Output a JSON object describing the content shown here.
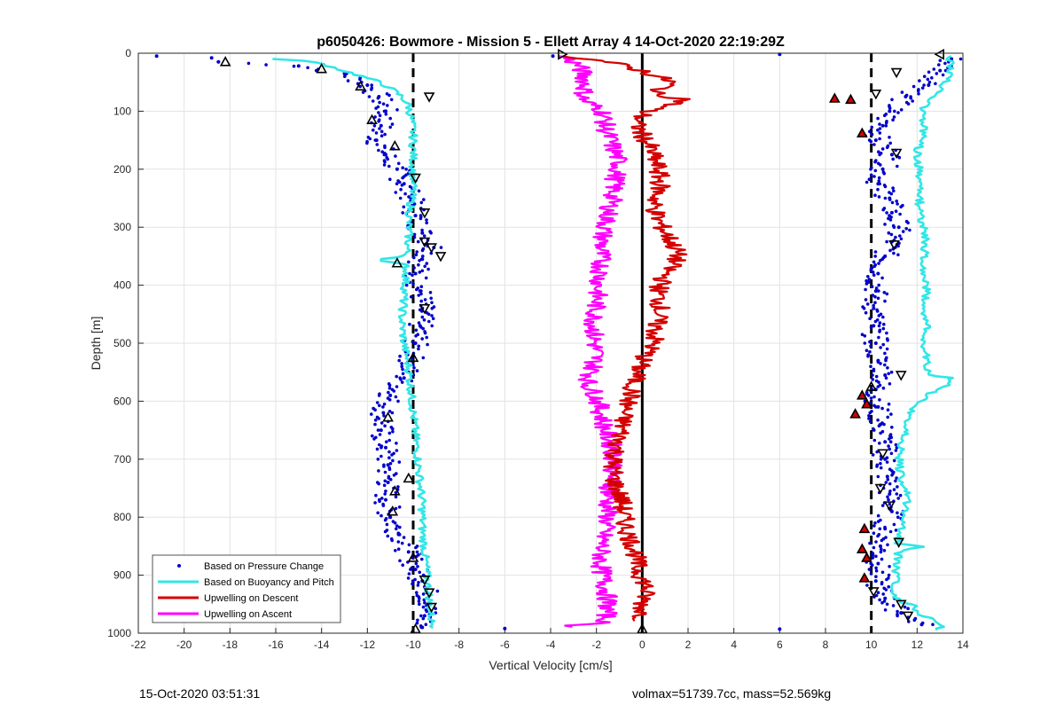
{
  "chart_data": {
    "type": "scatter",
    "title": "p6050426: Bowmore - Mission 5 - Ellett Array 4 14-Oct-2020 22:19:29Z",
    "xlabel": "Vertical Velocity [cm/s]",
    "ylabel": "Depth [m]",
    "xlim": [
      -22,
      14
    ],
    "ylim": [
      0,
      1000
    ],
    "y_reversed": true,
    "grid": true,
    "x_ticks": [
      "-22",
      "-20",
      "-18",
      "-16",
      "-14",
      "-12",
      "-10",
      "-8",
      "-6",
      "-4",
      "-2",
      "0",
      "2",
      "4",
      "6",
      "8",
      "10",
      "12",
      "14"
    ],
    "y_ticks": [
      "0",
      "100",
      "200",
      "300",
      "400",
      "500",
      "600",
      "700",
      "800",
      "900",
      "1000"
    ],
    "reference_lines": [
      {
        "x": -10,
        "style": "dashed",
        "color": "#000000"
      },
      {
        "x": 10,
        "style": "dashed",
        "color": "#000000"
      },
      {
        "x": 0,
        "style": "solid",
        "color": "#000000"
      }
    ],
    "legend_position": "bottom-left",
    "series": [
      {
        "name": "Based on Pressure Change",
        "kind": "points",
        "color": "#0000cc",
        "descent": [
          [
            -18.5,
            15
          ],
          [
            -15,
            22
          ],
          [
            -13,
            35
          ],
          [
            -12,
            55
          ],
          [
            -11.5,
            75
          ],
          [
            -11.2,
            100
          ],
          [
            -11.4,
            125
          ],
          [
            -11.6,
            150
          ],
          [
            -11.2,
            175
          ],
          [
            -10.7,
            200
          ],
          [
            -10.4,
            225
          ],
          [
            -10.1,
            250
          ],
          [
            -9.9,
            280
          ],
          [
            -9.6,
            310
          ],
          [
            -9.1,
            335
          ],
          [
            -9.6,
            355
          ],
          [
            -9.9,
            380
          ],
          [
            -9.7,
            410
          ],
          [
            -9.6,
            440
          ],
          [
            -9.7,
            470
          ],
          [
            -9.9,
            500
          ],
          [
            -10.1,
            530
          ],
          [
            -10.4,
            560
          ],
          [
            -11,
            590
          ],
          [
            -11.3,
            620
          ],
          [
            -11.4,
            650
          ],
          [
            -11.2,
            680
          ],
          [
            -11.1,
            710
          ],
          [
            -11.1,
            740
          ],
          [
            -11.2,
            770
          ],
          [
            -11,
            800
          ],
          [
            -10.6,
            830
          ],
          [
            -10.2,
            860
          ],
          [
            -9.9,
            890
          ],
          [
            -9.6,
            910
          ],
          [
            -9.4,
            930
          ],
          [
            -9.3,
            950
          ],
          [
            -9.5,
            970
          ],
          [
            -9.6,
            990
          ]
        ],
        "ascent": [
          [
            13.5,
            10
          ],
          [
            13,
            30
          ],
          [
            12.5,
            55
          ],
          [
            11.5,
            75
          ],
          [
            10.8,
            100
          ],
          [
            10.5,
            125
          ],
          [
            10.2,
            150
          ],
          [
            10.9,
            175
          ],
          [
            10.5,
            200
          ],
          [
            10.3,
            225
          ],
          [
            10.8,
            250
          ],
          [
            10.9,
            275
          ],
          [
            11.2,
            300
          ],
          [
            10.9,
            325
          ],
          [
            10.6,
            350
          ],
          [
            10.3,
            380
          ],
          [
            10.2,
            410
          ],
          [
            10.1,
            440
          ],
          [
            10.1,
            470
          ],
          [
            10.2,
            500
          ],
          [
            10.3,
            530
          ],
          [
            10.6,
            555
          ],
          [
            10.2,
            580
          ],
          [
            10.3,
            610
          ],
          [
            10.4,
            640
          ],
          [
            10.6,
            670
          ],
          [
            10.6,
            700
          ],
          [
            10.7,
            730
          ],
          [
            10.8,
            760
          ],
          [
            10.9,
            790
          ],
          [
            10.6,
            820
          ],
          [
            10.4,
            850
          ],
          [
            10.3,
            880
          ],
          [
            10.2,
            910
          ],
          [
            10.6,
            940
          ],
          [
            11.3,
            965
          ],
          [
            12.2,
            985
          ]
        ],
        "outliers": [
          [
            -21.2,
            5
          ],
          [
            -18.8,
            8
          ],
          [
            -3.9,
            5
          ],
          [
            6,
            2
          ],
          [
            -6,
            992
          ],
          [
            6,
            993
          ]
        ]
      },
      {
        "name": "Based on Buoyancy and Pitch",
        "kind": "line",
        "color": "#33e6e6",
        "descent": [
          [
            -16,
            10
          ],
          [
            -15,
            12
          ],
          [
            -14,
            18
          ],
          [
            -13.2,
            28
          ],
          [
            -12.4,
            38
          ],
          [
            -11.6,
            48
          ],
          [
            -11,
            60
          ],
          [
            -10.5,
            75
          ],
          [
            -10.2,
            90
          ],
          [
            -10.1,
            110
          ],
          [
            -10,
            140
          ],
          [
            -10,
            170
          ],
          [
            -10,
            200
          ],
          [
            -10,
            230
          ],
          [
            -10.1,
            260
          ],
          [
            -10.2,
            290
          ],
          [
            -10.2,
            320
          ],
          [
            -10.3,
            350
          ],
          [
            -11.6,
            357
          ],
          [
            -10.3,
            365
          ],
          [
            -10.3,
            380
          ],
          [
            -10.4,
            420
          ],
          [
            -10.5,
            460
          ],
          [
            -10.4,
            500
          ],
          [
            -10.2,
            540
          ],
          [
            -10.1,
            580
          ],
          [
            -10,
            620
          ],
          [
            -9.9,
            660
          ],
          [
            -9.8,
            700
          ],
          [
            -9.7,
            740
          ],
          [
            -9.6,
            780
          ],
          [
            -9.6,
            820
          ],
          [
            -9.5,
            860
          ],
          [
            -9.4,
            900
          ],
          [
            -9.3,
            940
          ],
          [
            -9.2,
            980
          ],
          [
            -9,
            993
          ],
          [
            12.9,
            993
          ]
        ],
        "ascent": [
          [
            13,
            995
          ],
          [
            13,
            985
          ],
          [
            12.8,
            975
          ],
          [
            12,
            968
          ],
          [
            11.9,
            950
          ],
          [
            11.1,
            945
          ],
          [
            11,
            920
          ],
          [
            11.1,
            890
          ],
          [
            11.2,
            860
          ],
          [
            12.3,
            850
          ],
          [
            11.2,
            845
          ],
          [
            11.3,
            820
          ],
          [
            11.5,
            790
          ],
          [
            11.6,
            770
          ],
          [
            11.4,
            740
          ],
          [
            11.2,
            710
          ],
          [
            11.3,
            680
          ],
          [
            11.5,
            650
          ],
          [
            11.7,
            620
          ],
          [
            12.1,
            600
          ],
          [
            12.6,
            585
          ],
          [
            13.5,
            570
          ],
          [
            13.5,
            560
          ],
          [
            12.5,
            555
          ],
          [
            12.4,
            530
          ],
          [
            12.3,
            500
          ],
          [
            12.4,
            470
          ],
          [
            12.3,
            440
          ],
          [
            12.4,
            410
          ],
          [
            12.3,
            380
          ],
          [
            12.3,
            350
          ],
          [
            12.4,
            320
          ],
          [
            12.2,
            290
          ],
          [
            12.1,
            260
          ],
          [
            12.2,
            230
          ],
          [
            12.1,
            200
          ],
          [
            12,
            170
          ],
          [
            12.2,
            150
          ],
          [
            12.3,
            120
          ],
          [
            12.2,
            100
          ],
          [
            12.5,
            80
          ],
          [
            13.1,
            60
          ],
          [
            13.4,
            40
          ],
          [
            13.5,
            20
          ],
          [
            13.4,
            5
          ]
        ]
      },
      {
        "name": "Upwelling on Descent",
        "kind": "line",
        "color": "#d40000",
        "points": [
          [
            -3.2,
            5
          ],
          [
            -1.5,
            15
          ],
          [
            0,
            30
          ],
          [
            1.3,
            50
          ],
          [
            0.5,
            70
          ],
          [
            2,
            80
          ],
          [
            0.2,
            100
          ],
          [
            -0.3,
            120
          ],
          [
            0,
            140
          ],
          [
            0.3,
            160
          ],
          [
            0.5,
            180
          ],
          [
            0.7,
            200
          ],
          [
            0.8,
            230
          ],
          [
            0.5,
            260
          ],
          [
            0.7,
            290
          ],
          [
            1.2,
            320
          ],
          [
            1.5,
            340
          ],
          [
            1.5,
            355
          ],
          [
            1,
            380
          ],
          [
            0.7,
            410
          ],
          [
            0.8,
            440
          ],
          [
            0.6,
            470
          ],
          [
            0.5,
            500
          ],
          [
            0,
            530
          ],
          [
            -0.3,
            560
          ],
          [
            -0.5,
            590
          ],
          [
            -0.8,
            620
          ],
          [
            -0.9,
            650
          ],
          [
            -1.1,
            680
          ],
          [
            -1.3,
            710
          ],
          [
            -1.2,
            740
          ],
          [
            -0.9,
            770
          ],
          [
            -0.8,
            800
          ],
          [
            -0.6,
            830
          ],
          [
            -0.3,
            860
          ],
          [
            -0.2,
            890
          ],
          [
            0.2,
            920
          ],
          [
            0,
            950
          ],
          [
            0,
            980
          ]
        ]
      },
      {
        "name": "Upwelling on Ascent",
        "kind": "line",
        "color": "#ff00ff",
        "points": [
          [
            -3.5,
            5
          ],
          [
            -2.8,
            20
          ],
          [
            -2.5,
            40
          ],
          [
            -2.5,
            60
          ],
          [
            -2.6,
            80
          ],
          [
            -1.7,
            100
          ],
          [
            -1.6,
            130
          ],
          [
            -1.3,
            160
          ],
          [
            -1,
            190
          ],
          [
            -1.2,
            220
          ],
          [
            -1.3,
            250
          ],
          [
            -1.5,
            280
          ],
          [
            -1.7,
            310
          ],
          [
            -1.8,
            340
          ],
          [
            -1.8,
            370
          ],
          [
            -1.9,
            400
          ],
          [
            -2,
            430
          ],
          [
            -2.1,
            460
          ],
          [
            -2.1,
            490
          ],
          [
            -2,
            520
          ],
          [
            -2.2,
            550
          ],
          [
            -2.4,
            570
          ],
          [
            -2,
            590
          ],
          [
            -1.8,
            620
          ],
          [
            -1.6,
            650
          ],
          [
            -1.3,
            680
          ],
          [
            -1.2,
            710
          ],
          [
            -1.4,
            740
          ],
          [
            -1.5,
            770
          ],
          [
            -1.5,
            800
          ],
          [
            -1.7,
            830
          ],
          [
            -1.8,
            860
          ],
          [
            -1.8,
            890
          ],
          [
            -1.6,
            920
          ],
          [
            -1.5,
            950
          ],
          [
            -1.6,
            980
          ],
          [
            -3.5,
            990
          ]
        ]
      }
    ],
    "triangle_markers": [
      {
        "x": -18.2,
        "y": 15,
        "dir": "up"
      },
      {
        "x": -14,
        "y": 27,
        "dir": "up"
      },
      {
        "x": -12.3,
        "y": 57,
        "dir": "up"
      },
      {
        "x": -9.3,
        "y": 75,
        "dir": "down"
      },
      {
        "x": -11.8,
        "y": 115,
        "dir": "up"
      },
      {
        "x": -10.8,
        "y": 160,
        "dir": "up"
      },
      {
        "x": -9.9,
        "y": 215,
        "dir": "down"
      },
      {
        "x": -9.5,
        "y": 275,
        "dir": "down"
      },
      {
        "x": -9.5,
        "y": 325,
        "dir": "down"
      },
      {
        "x": -9.2,
        "y": 335,
        "dir": "down"
      },
      {
        "x": -8.8,
        "y": 350,
        "dir": "down"
      },
      {
        "x": -10.7,
        "y": 362,
        "dir": "up"
      },
      {
        "x": -9.5,
        "y": 440,
        "dir": "down"
      },
      {
        "x": -10,
        "y": 525,
        "dir": "up"
      },
      {
        "x": -11.1,
        "y": 628,
        "dir": "up"
      },
      {
        "x": -10.2,
        "y": 733,
        "dir": "up"
      },
      {
        "x": -10.8,
        "y": 755,
        "dir": "up"
      },
      {
        "x": -10.9,
        "y": 790,
        "dir": "up"
      },
      {
        "x": -10,
        "y": 870,
        "dir": "up"
      },
      {
        "x": -9.5,
        "y": 908,
        "dir": "down"
      },
      {
        "x": -9.3,
        "y": 930,
        "dir": "down"
      },
      {
        "x": -9.2,
        "y": 955,
        "dir": "down"
      },
      {
        "x": -9.9,
        "y": 993,
        "dir": "up"
      },
      {
        "x": -3.5,
        "y": 2,
        "dir": "right"
      },
      {
        "x": 0,
        "y": 993,
        "dir": "up"
      },
      {
        "x": 13,
        "y": 2,
        "dir": "left"
      },
      {
        "x": 11.1,
        "y": 33,
        "dir": "down"
      },
      {
        "x": 10.2,
        "y": 70,
        "dir": "down"
      },
      {
        "x": 11.1,
        "y": 172,
        "dir": "down"
      },
      {
        "x": 11,
        "y": 330,
        "dir": "down"
      },
      {
        "x": 11.3,
        "y": 555,
        "dir": "down"
      },
      {
        "x": 10.5,
        "y": 690,
        "dir": "down"
      },
      {
        "x": 10.4,
        "y": 750,
        "dir": "down"
      },
      {
        "x": 10.8,
        "y": 780,
        "dir": "down"
      },
      {
        "x": 11.2,
        "y": 843,
        "dir": "down"
      },
      {
        "x": 10.1,
        "y": 928,
        "dir": "down"
      },
      {
        "x": 11.3,
        "y": 950,
        "dir": "down"
      },
      {
        "x": 11.6,
        "y": 970,
        "dir": "down"
      },
      {
        "x": 10,
        "y": 575,
        "dir": "up"
      }
    ],
    "red_triangle_markers": [
      {
        "x": 8.4,
        "y": 78
      },
      {
        "x": 9.1,
        "y": 80
      },
      {
        "x": 9.6,
        "y": 138
      },
      {
        "x": 9.6,
        "y": 590
      },
      {
        "x": 9.8,
        "y": 605
      },
      {
        "x": 9.3,
        "y": 622
      },
      {
        "x": 9.7,
        "y": 820
      },
      {
        "x": 9.6,
        "y": 855
      },
      {
        "x": 9.8,
        "y": 870
      },
      {
        "x": 9.7,
        "y": 905
      }
    ]
  },
  "footer": {
    "timestamp": "15-Oct-2020 03:51:31",
    "stats": "volmax=51739.7cc, mass=52.569kg"
  }
}
